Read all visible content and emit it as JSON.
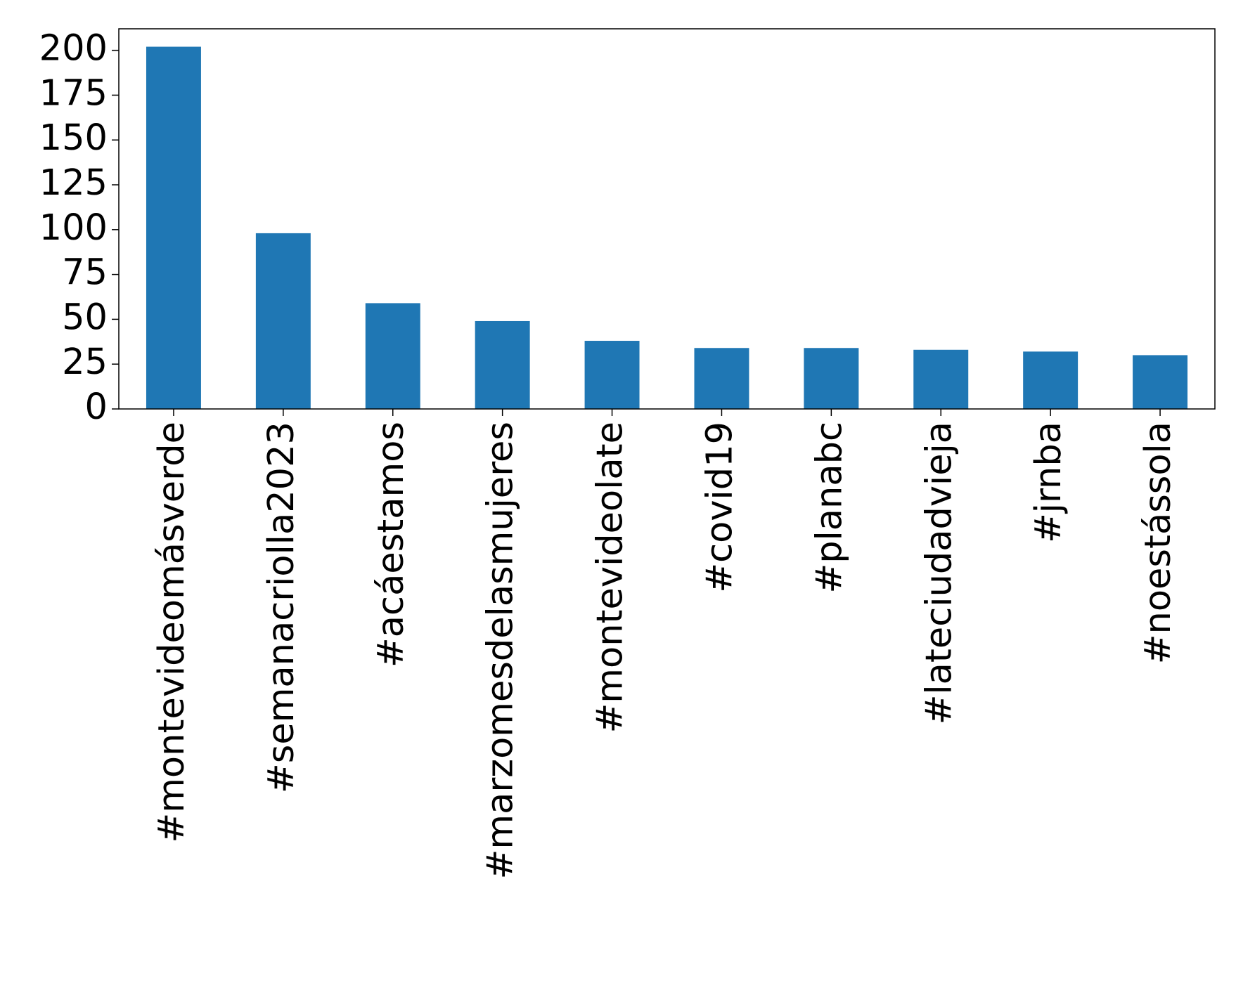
{
  "chart_data": {
    "type": "bar",
    "categories": [
      "#montevideomásverde",
      "#semanacriolla2023",
      "#acáestamos",
      "#marzomesdelasmujeres",
      "#montevideolate",
      "#covid19",
      "#planabc",
      "#lateciudadvieja",
      "#jrnba",
      "#noestássola"
    ],
    "values": [
      202,
      98,
      59,
      49,
      38,
      34,
      34,
      33,
      32,
      30
    ],
    "color": "#1f77b4",
    "ylim": [
      0,
      212
    ],
    "yticks": [
      0,
      25,
      50,
      75,
      100,
      125,
      150,
      175,
      200
    ],
    "grid": false
  }
}
